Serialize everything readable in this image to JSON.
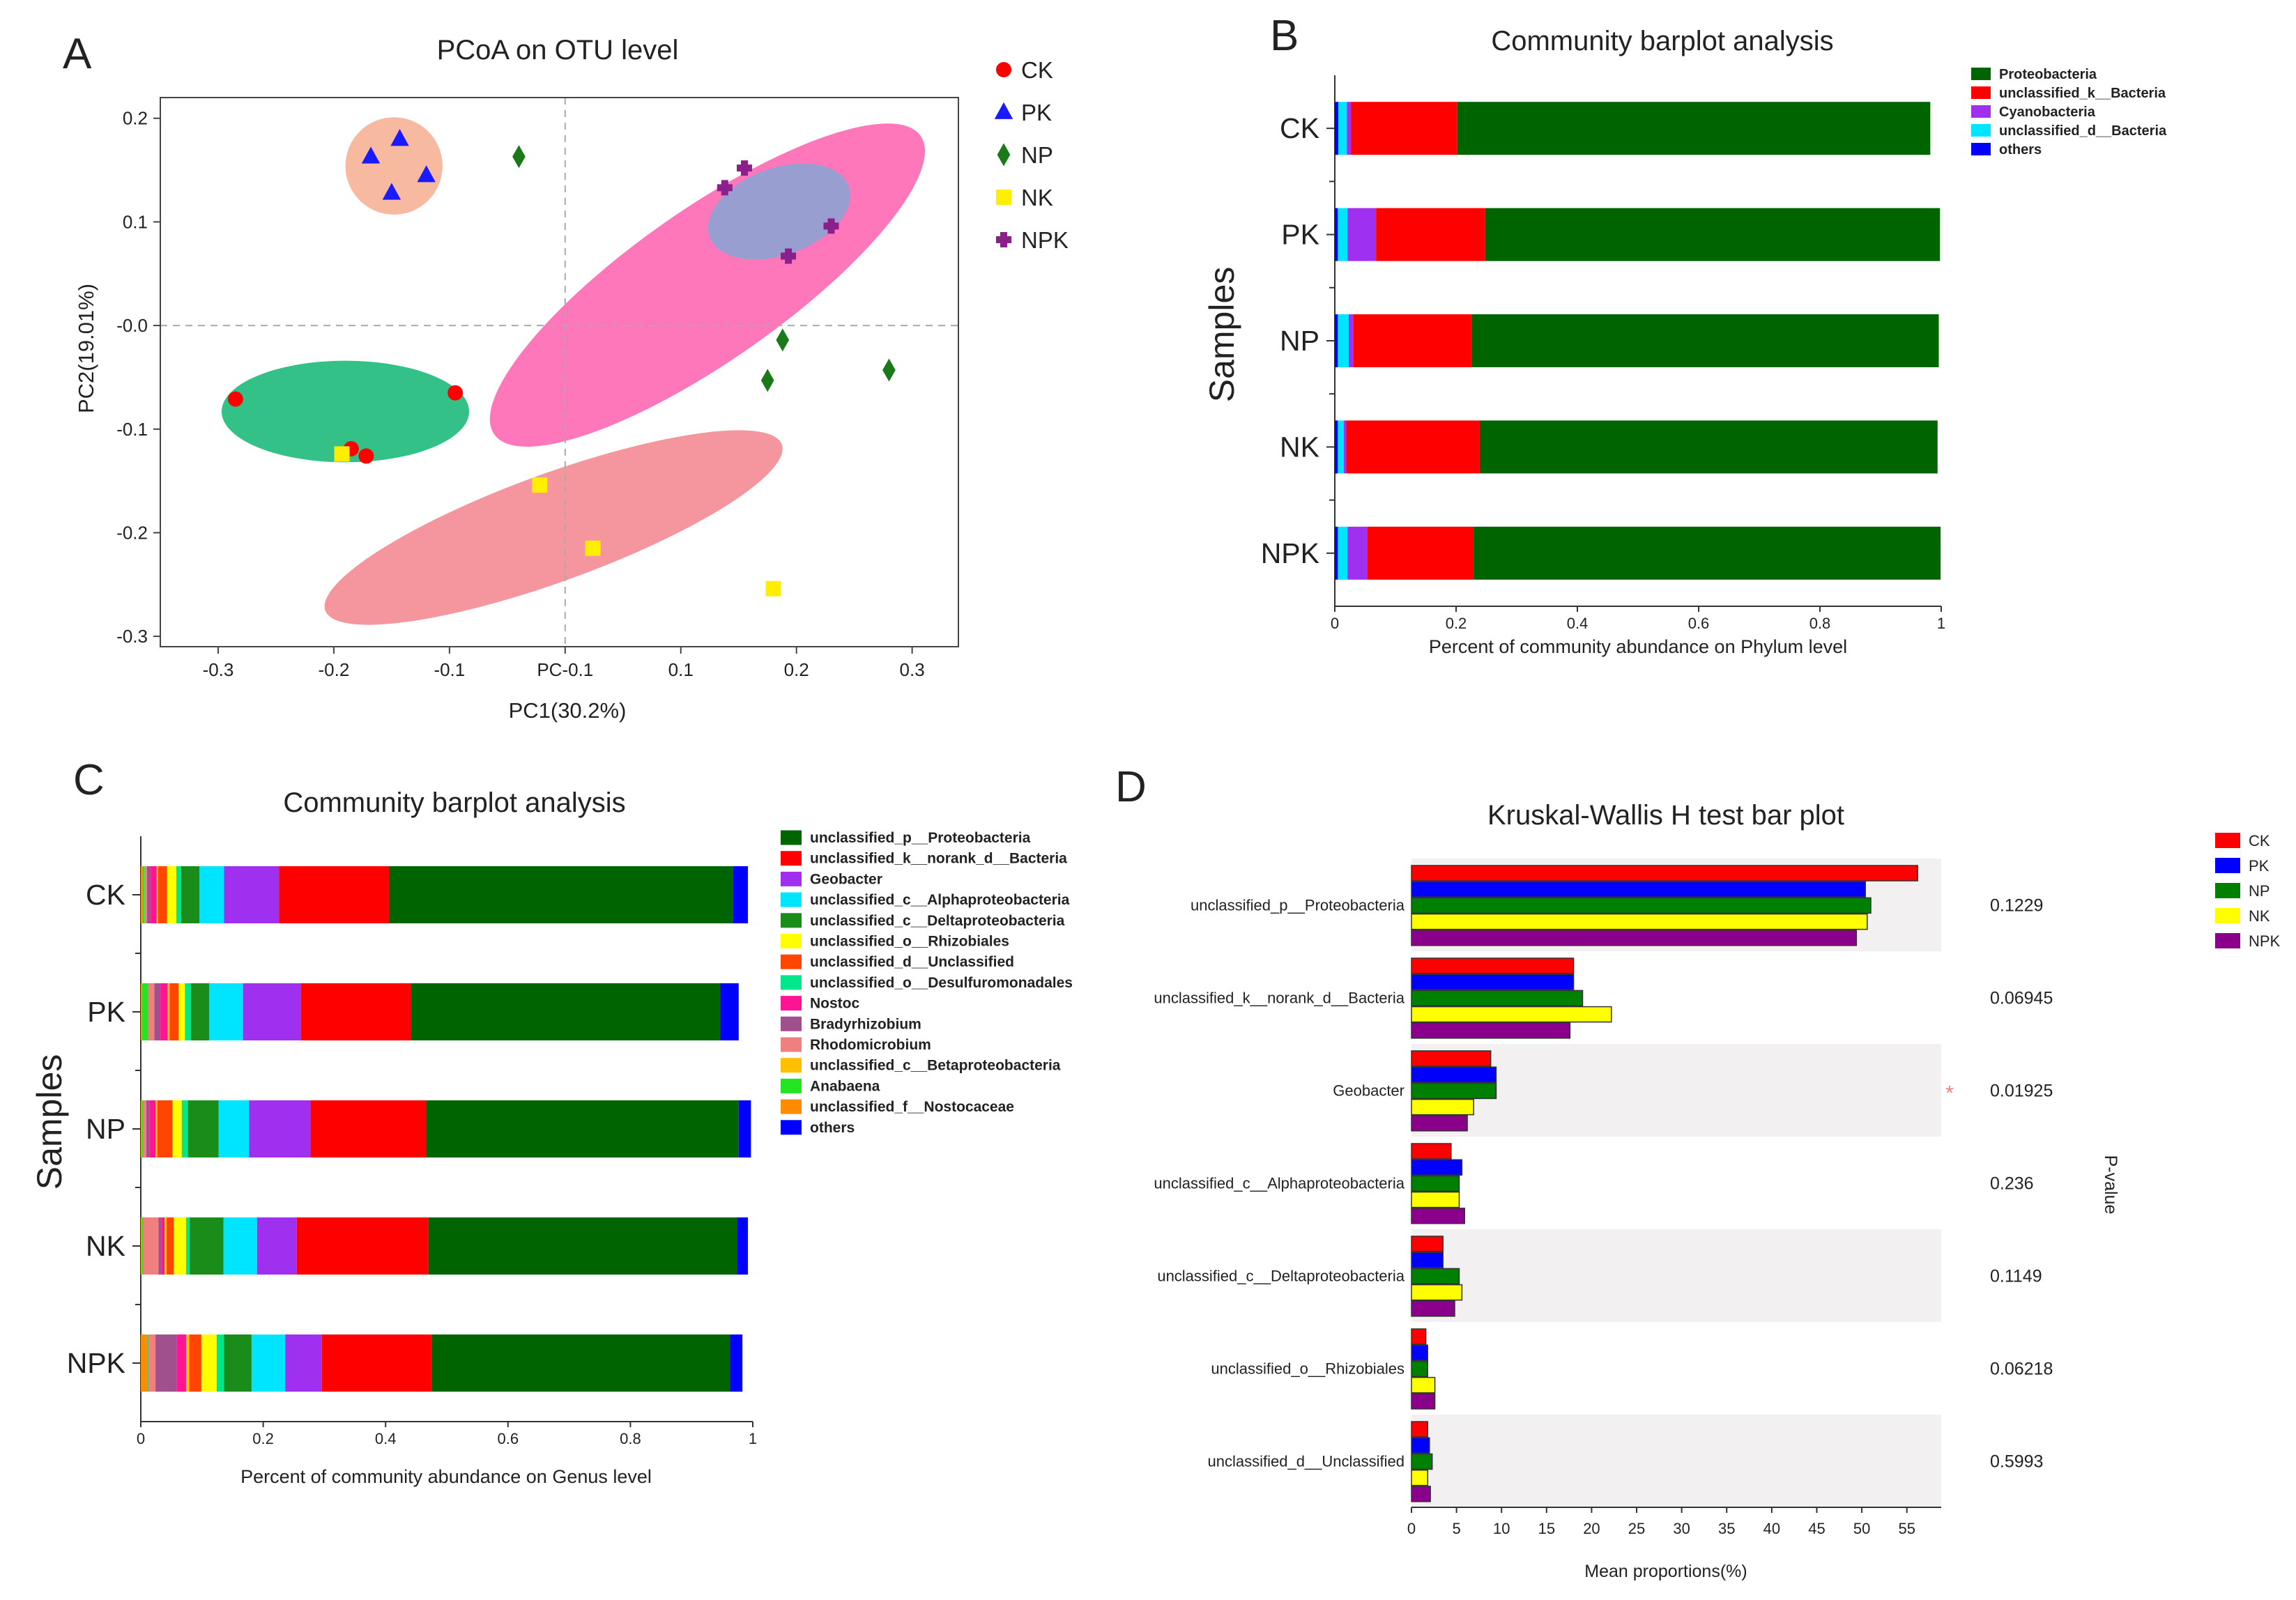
{
  "chart_data": [
    {
      "id": "A",
      "type": "scatter",
      "panel_letter": "A",
      "title": "PCoA on OTU level",
      "xlabel": "PC1(30.2%)",
      "ylabel": "PC2(19.01%)",
      "xlim": [
        -0.35,
        0.34
      ],
      "ylim": [
        -0.31,
        0.22
      ],
      "xticks": [
        -0.3,
        -0.2,
        -0.1,
        0.0,
        0.1,
        0.2,
        0.3
      ],
      "xtick_labels": [
        "-0.3",
        "-0.2",
        "-0.1",
        "PC-0.1",
        "0.1",
        "0.2",
        "0.3"
      ],
      "yticks": [
        0.2,
        0.1,
        0.0,
        -0.1,
        -0.2,
        -0.3
      ],
      "ytick_labels": [
        "0.2",
        "0.1",
        "-0.0",
        "-0.1",
        "-0.2",
        "-0.3"
      ],
      "series": [
        {
          "name": "CK",
          "marker": "circle",
          "color": "#ff0000",
          "points": [
            [
              -0.285,
              -0.071
            ],
            [
              -0.095,
              -0.065
            ],
            [
              -0.185,
              -0.119
            ],
            [
              -0.172,
              -0.126
            ]
          ]
        },
        {
          "name": "PK",
          "marker": "triangle",
          "color": "#1a1aff",
          "points": [
            [
              -0.168,
              0.163
            ],
            [
              -0.143,
              0.18
            ],
            [
              -0.15,
              0.128
            ],
            [
              -0.12,
              0.145
            ]
          ]
        },
        {
          "name": "NP",
          "marker": "diamond",
          "color": "#1a7a1a",
          "points": [
            [
              -0.04,
              0.163
            ],
            [
              0.188,
              -0.014
            ],
            [
              0.175,
              -0.053
            ],
            [
              0.28,
              -0.043
            ]
          ]
        },
        {
          "name": "NK",
          "marker": "square",
          "color": "#ffee00",
          "points": [
            [
              -0.193,
              -0.124
            ],
            [
              -0.022,
              -0.154
            ],
            [
              0.024,
              -0.215
            ],
            [
              0.18,
              -0.254
            ]
          ]
        },
        {
          "name": "NPK",
          "marker": "cross",
          "color": "#8b1f8b",
          "points": [
            [
              0.155,
              0.152
            ],
            [
              0.138,
              0.133
            ],
            [
              0.23,
              0.096
            ],
            [
              0.193,
              0.067
            ]
          ]
        }
      ],
      "ellipses": [
        {
          "group": "PK",
          "cx": -0.148,
          "cy": 0.154,
          "rx": 0.042,
          "ry": 0.047,
          "angle": 0,
          "color": "#f5a98a"
        },
        {
          "group": "NP",
          "cx": 0.123,
          "cy": 0.039,
          "rx": 0.225,
          "ry": 0.073,
          "angle": -35,
          "color": "#ff55aa"
        },
        {
          "group": "NPK",
          "cx": 0.185,
          "cy": 0.11,
          "rx": 0.064,
          "ry": 0.042,
          "angle": -20,
          "color": "#7fa8d6"
        },
        {
          "group": "CK",
          "cx": -0.19,
          "cy": -0.083,
          "rx": 0.107,
          "ry": 0.049,
          "angle": 0,
          "color": "#00b26a"
        },
        {
          "group": "NK",
          "cx": -0.01,
          "cy": -0.195,
          "rx": 0.21,
          "ry": 0.052,
          "angle": -20,
          "color": "#f27a86"
        }
      ]
    },
    {
      "id": "B",
      "type": "bar",
      "orientation": "horizontal-stacked",
      "panel_letter": "B",
      "title": "Community barplot analysis",
      "xlabel": "Percent of community abundance on Phylum level",
      "ylabel": "Samples",
      "xlim": [
        0,
        1
      ],
      "xticks": [
        0,
        0.2,
        0.4,
        0.6,
        0.8,
        1
      ],
      "xtick_labels": [
        "0",
        "0.2",
        "0.4",
        "0.6",
        "0.8",
        "1"
      ],
      "categories": [
        "CK",
        "PK",
        "NP",
        "NK",
        "NPK"
      ],
      "stack_order": [
        "others",
        "unclassified_d__Bacteria",
        "Cyanobacteria",
        "unclassified_k__Bacteria",
        "Proteobacteria"
      ],
      "legend": [
        "Proteobacteria",
        "unclassified_k__Bacteria",
        "Cyanobacteria",
        "unclassified_d__Bacteria",
        "others"
      ],
      "series": [
        {
          "name": "Proteobacteria",
          "color": "#006400",
          "values": [
            0.78,
            0.75,
            0.77,
            0.755,
            0.77
          ]
        },
        {
          "name": "unclassified_k__Bacteria",
          "color": "#ff0000",
          "values": [
            0.175,
            0.18,
            0.195,
            0.22,
            0.175
          ]
        },
        {
          "name": "Cyanobacteria",
          "color": "#9f30f0",
          "values": [
            0.007,
            0.047,
            0.008,
            0.004,
            0.033
          ]
        },
        {
          "name": "unclassified_d__Bacteria",
          "color": "#00e5ff",
          "values": [
            0.014,
            0.016,
            0.018,
            0.01,
            0.016
          ]
        },
        {
          "name": "others",
          "color": "#0000ff",
          "values": [
            0.006,
            0.005,
            0.005,
            0.005,
            0.005
          ]
        }
      ]
    },
    {
      "id": "C",
      "type": "bar",
      "orientation": "horizontal-stacked",
      "panel_letter": "C",
      "title": "Community barplot analysis",
      "xlabel": "Percent of community abundance on Genus level",
      "ylabel": "Samples",
      "xlim": [
        0,
        1
      ],
      "xticks": [
        0,
        0.2,
        0.4,
        0.6,
        0.8,
        1
      ],
      "xtick_labels": [
        "0",
        "0.2",
        "0.4",
        "0.6",
        "0.8",
        "1"
      ],
      "categories": [
        "CK",
        "PK",
        "NP",
        "NK",
        "NPK"
      ],
      "stack_order": [
        "unclassified_f__Nostocaceae",
        "Anabaena",
        "Rhodomicrobium",
        "Bradyrhizobium",
        "Nostoc",
        "unclassified_c__Betaproteobacteria",
        "unclassified_d__Unclassified",
        "unclassified_o__Rhizobiales",
        "unclassified_o__Desulfuromonadales",
        "unclassified_c__Deltaproteobacteria",
        "unclassified_c__Alphaproteobacteria",
        "Geobacter",
        "unclassified_k__norank_d__Bacteria",
        "unclassified_p__Proteobacteria",
        "others"
      ],
      "legend": [
        "unclassified_p__Proteobacteria",
        "unclassified_k__norank_d__Bacteria",
        "Geobacter",
        "unclassified_c__Alphaproteobacteria",
        "unclassified_c__Deltaproteobacteria",
        "unclassified_o__Rhizobiales",
        "unclassified_d__Unclassified",
        "unclassified_o__Desulfuromonadales",
        "Nostoc",
        "Bradyrhizobium",
        "Rhodomicrobium",
        "unclassified_c__Betaproteobacteria",
        "Anabaena",
        "unclassified_f__Nostocaceae",
        "others"
      ],
      "series": [
        {
          "name": "unclassified_p__Proteobacteria",
          "color": "#006400",
          "values": [
            0.562,
            0.505,
            0.51,
            0.505,
            0.487
          ]
        },
        {
          "name": "unclassified_k__norank_d__Bacteria",
          "color": "#ff0000",
          "values": [
            0.18,
            0.18,
            0.19,
            0.215,
            0.18
          ]
        },
        {
          "name": "Geobacter",
          "color": "#9f30f0",
          "values": [
            0.09,
            0.095,
            0.1,
            0.065,
            0.06
          ]
        },
        {
          "name": "unclassified_c__Alphaproteobacteria",
          "color": "#00e5ff",
          "values": [
            0.04,
            0.055,
            0.05,
            0.055,
            0.055
          ]
        },
        {
          "name": "unclassified_c__Deltaproteobacteria",
          "color": "#1a8c1a",
          "values": [
            0.03,
            0.03,
            0.05,
            0.055,
            0.045
          ]
        },
        {
          "name": "unclassified_o__Rhizobiales",
          "color": "#ffff00",
          "values": [
            0.015,
            0.01,
            0.015,
            0.02,
            0.025
          ]
        },
        {
          "name": "unclassified_d__Unclassified",
          "color": "#ff4500",
          "values": [
            0.015,
            0.015,
            0.025,
            0.012,
            0.02
          ]
        },
        {
          "name": "unclassified_o__Desulfuromonadales",
          "color": "#00e68a",
          "values": [
            0.008,
            0.01,
            0.01,
            0.006,
            0.012
          ]
        },
        {
          "name": "Nostoc",
          "color": "#ff1493",
          "values": [
            0.01,
            0.012,
            0.01,
            0.005,
            0.015
          ]
        },
        {
          "name": "Bradyrhizobium",
          "color": "#a0508c",
          "values": [
            0.006,
            0.01,
            0.005,
            0.005,
            0.035
          ]
        },
        {
          "name": "Rhodomicrobium",
          "color": "#f08080",
          "values": [
            0.004,
            0.01,
            0.005,
            0.025,
            0.012
          ]
        },
        {
          "name": "unclassified_c__Betaproteobacteria",
          "color": "#ffc000",
          "values": [
            0.002,
            0.003,
            0.003,
            0.003,
            0.005
          ]
        },
        {
          "name": "Anabaena",
          "color": "#22e622",
          "values": [
            0.003,
            0.01,
            0.002,
            0.002,
            0.002
          ]
        },
        {
          "name": "unclassified_f__Nostocaceae",
          "color": "#ff8c00",
          "values": [
            0.003,
            0.002,
            0.002,
            0.002,
            0.01
          ]
        },
        {
          "name": "others",
          "color": "#0000ff",
          "values": [
            0.024,
            0.03,
            0.02,
            0.017,
            0.02
          ]
        }
      ]
    },
    {
      "id": "D",
      "type": "bar",
      "orientation": "horizontal-grouped",
      "panel_letter": "D",
      "title": "Kruskal-Wallis H test bar plot",
      "xlabel": "Mean proportions(%)",
      "ylabel_right": "P-value",
      "xlim": [
        0,
        57.5
      ],
      "xticks": [
        0,
        5,
        10,
        15,
        20,
        25,
        30,
        35,
        40,
        45,
        50,
        55
      ],
      "xtick_labels": [
        "0",
        "5",
        "10",
        "15",
        "20",
        "25",
        "30",
        "35",
        "40",
        "45",
        "50",
        "55"
      ],
      "categories": [
        "unclassified_p__Proteobacteria",
        "unclassified_k__norank_d__Bacteria",
        "Geobacter",
        "unclassified_c__Alphaproteobacteria",
        "unclassified_c__Deltaproteobacteria",
        "unclassified_o__Rhizobiales",
        "unclassified_d__Unclassified"
      ],
      "p_values": [
        "0.1229",
        "0.06945",
        "0.01925",
        "0.236",
        "0.1149",
        "0.06218",
        "0.5993"
      ],
      "significance_marker": {
        "category_index": 2,
        "symbol": "*"
      },
      "series": [
        {
          "name": "CK",
          "color": "#ff0000",
          "values": [
            56.2,
            18.0,
            8.8,
            4.4,
            3.5,
            1.6,
            1.8
          ]
        },
        {
          "name": "PK",
          "color": "#0000ff",
          "values": [
            50.4,
            18.0,
            9.4,
            5.6,
            3.5,
            1.8,
            2.0
          ]
        },
        {
          "name": "NP",
          "color": "#008000",
          "values": [
            51.0,
            19.0,
            9.4,
            5.3,
            5.3,
            1.8,
            2.3
          ]
        },
        {
          "name": "NK",
          "color": "#ffff00",
          "values": [
            50.6,
            22.2,
            6.9,
            5.3,
            5.6,
            2.6,
            1.8
          ]
        },
        {
          "name": "NPK",
          "color": "#8b008b",
          "values": [
            49.4,
            17.6,
            6.2,
            5.9,
            4.8,
            2.6,
            2.1
          ]
        }
      ]
    }
  ]
}
